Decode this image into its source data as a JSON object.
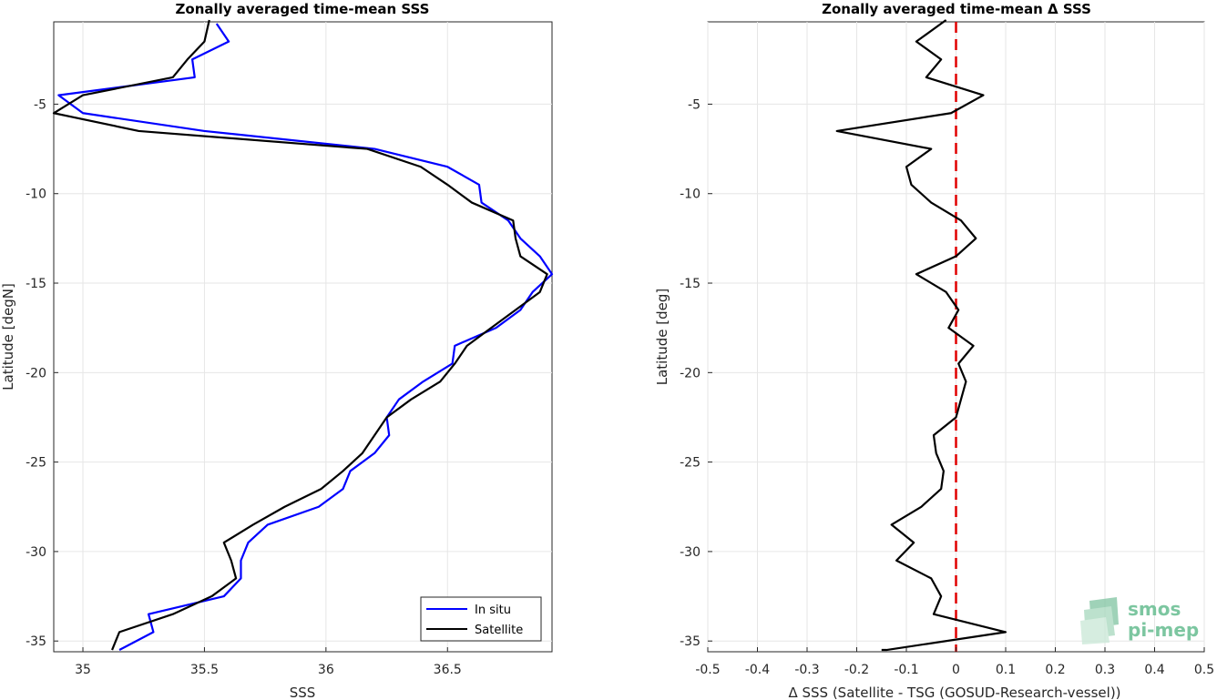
{
  "chart_data": [
    {
      "type": "line",
      "title": "Zonally averaged time-mean SSS",
      "xlabel": "SSS",
      "ylabel": "Latitude [degN]",
      "xlim": [
        34.88,
        36.93
      ],
      "ylim": [
        -35.6,
        -0.4
      ],
      "xticks": [
        "35",
        "35.5",
        "36",
        "36.5"
      ],
      "xtick_values": [
        35,
        35.5,
        36,
        36.5
      ],
      "yticks": [
        "-5",
        "-10",
        "-15",
        "-20",
        "-25",
        "-30",
        "-35"
      ],
      "ytick_values": [
        -5,
        -10,
        -15,
        -20,
        -25,
        -30,
        -35
      ],
      "grid": true,
      "legend_position": "bottom-right",
      "series": [
        {
          "name": "In situ",
          "color": "#0000ff",
          "points": [
            [
              35.55,
              -0.5
            ],
            [
              35.6,
              -1.5
            ],
            [
              35.45,
              -2.5
            ],
            [
              35.46,
              -3.5
            ],
            [
              34.9,
              -4.5
            ],
            [
              35.0,
              -5.5
            ],
            [
              35.5,
              -6.5
            ],
            [
              36.2,
              -7.5
            ],
            [
              36.5,
              -8.5
            ],
            [
              36.63,
              -9.5
            ],
            [
              36.64,
              -10.5
            ],
            [
              36.75,
              -11.5
            ],
            [
              36.8,
              -12.5
            ],
            [
              36.88,
              -13.5
            ],
            [
              36.93,
              -14.5
            ],
            [
              36.85,
              -15.5
            ],
            [
              36.8,
              -16.5
            ],
            [
              36.7,
              -17.5
            ],
            [
              36.53,
              -18.5
            ],
            [
              36.52,
              -19.5
            ],
            [
              36.4,
              -20.5
            ],
            [
              36.3,
              -21.5
            ],
            [
              36.25,
              -22.5
            ],
            [
              36.26,
              -23.5
            ],
            [
              36.2,
              -24.5
            ],
            [
              36.1,
              -25.5
            ],
            [
              36.07,
              -26.5
            ],
            [
              35.97,
              -27.5
            ],
            [
              35.76,
              -28.5
            ],
            [
              35.68,
              -29.5
            ],
            [
              35.65,
              -30.5
            ],
            [
              35.65,
              -31.5
            ],
            [
              35.58,
              -32.5
            ],
            [
              35.27,
              -33.5
            ],
            [
              35.29,
              -34.5
            ],
            [
              35.15,
              -35.5
            ]
          ]
        },
        {
          "name": "Satellite",
          "color": "#000000",
          "points": [
            [
              35.52,
              -0.3
            ],
            [
              35.5,
              -1.5
            ],
            [
              35.43,
              -2.5
            ],
            [
              35.37,
              -3.5
            ],
            [
              35.0,
              -4.5
            ],
            [
              34.88,
              -5.5
            ],
            [
              35.23,
              -6.5
            ],
            [
              36.17,
              -7.5
            ],
            [
              36.39,
              -8.5
            ],
            [
              36.5,
              -9.5
            ],
            [
              36.6,
              -10.5
            ],
            [
              36.77,
              -11.5
            ],
            [
              36.78,
              -12.5
            ],
            [
              36.8,
              -13.5
            ],
            [
              36.91,
              -14.5
            ],
            [
              36.88,
              -15.5
            ],
            [
              36.78,
              -16.5
            ],
            [
              36.68,
              -17.5
            ],
            [
              36.58,
              -18.5
            ],
            [
              36.53,
              -19.5
            ],
            [
              36.47,
              -20.5
            ],
            [
              36.35,
              -21.5
            ],
            [
              36.25,
              -22.5
            ],
            [
              36.2,
              -23.5
            ],
            [
              36.15,
              -24.5
            ],
            [
              36.07,
              -25.5
            ],
            [
              35.98,
              -26.5
            ],
            [
              35.83,
              -27.5
            ],
            [
              35.7,
              -28.5
            ],
            [
              35.58,
              -29.5
            ],
            [
              35.61,
              -30.5
            ],
            [
              35.63,
              -31.5
            ],
            [
              35.53,
              -32.5
            ],
            [
              35.37,
              -33.5
            ],
            [
              35.15,
              -34.5
            ],
            [
              35.12,
              -35.5
            ]
          ]
        }
      ]
    },
    {
      "type": "line",
      "title": "Zonally averaged time-mean Δ SSS",
      "xlabel": "Δ SSS (Satellite - TSG (GOSUD-Research-vessel))",
      "ylabel": "Latitude [deg]",
      "xlim": [
        -0.5,
        0.5
      ],
      "ylim": [
        -35.6,
        -0.4
      ],
      "xticks": [
        "-0.5",
        "-0.4",
        "-0.3",
        "-0.2",
        "-0.1",
        "0",
        "0.1",
        "0.2",
        "0.3",
        "0.4",
        "0.5"
      ],
      "xtick_values": [
        -0.5,
        -0.4,
        -0.3,
        -0.2,
        -0.1,
        0,
        0.1,
        0.2,
        0.3,
        0.4,
        0.5
      ],
      "yticks": [
        "-5",
        "-10",
        "-15",
        "-20",
        "-25",
        "-30",
        "-35"
      ],
      "ytick_values": [
        -5,
        -10,
        -15,
        -20,
        -25,
        -30,
        -35
      ],
      "grid": true,
      "zero_line_color": "#e00000",
      "series": [
        {
          "color": "#000000",
          "points": [
            [
              -0.02,
              -0.3
            ],
            [
              -0.08,
              -1.5
            ],
            [
              -0.03,
              -2.5
            ],
            [
              -0.06,
              -3.5
            ],
            [
              0.055,
              -4.5
            ],
            [
              -0.01,
              -5.5
            ],
            [
              -0.24,
              -6.5
            ],
            [
              -0.05,
              -7.5
            ],
            [
              -0.1,
              -8.5
            ],
            [
              -0.09,
              -9.5
            ],
            [
              -0.05,
              -10.5
            ],
            [
              0.01,
              -11.5
            ],
            [
              0.04,
              -12.5
            ],
            [
              0.0,
              -13.5
            ],
            [
              -0.08,
              -14.5
            ],
            [
              -0.02,
              -15.5
            ],
            [
              0.005,
              -16.5
            ],
            [
              -0.015,
              -17.5
            ],
            [
              0.035,
              -18.5
            ],
            [
              0.005,
              -19.5
            ],
            [
              0.02,
              -20.5
            ],
            [
              0.01,
              -21.5
            ],
            [
              0.0,
              -22.5
            ],
            [
              -0.045,
              -23.5
            ],
            [
              -0.04,
              -24.5
            ],
            [
              -0.025,
              -25.5
            ],
            [
              -0.03,
              -26.5
            ],
            [
              -0.07,
              -27.5
            ],
            [
              -0.13,
              -28.5
            ],
            [
              -0.085,
              -29.5
            ],
            [
              -0.12,
              -30.5
            ],
            [
              -0.05,
              -31.5
            ],
            [
              -0.03,
              -32.5
            ],
            [
              -0.045,
              -33.5
            ],
            [
              0.1,
              -34.5
            ],
            [
              -0.14,
              -35.5
            ],
            [
              -0.15,
              -35.5
            ]
          ]
        }
      ]
    }
  ],
  "logo": {
    "line1": "smos",
    "line2": "pi-mep"
  }
}
